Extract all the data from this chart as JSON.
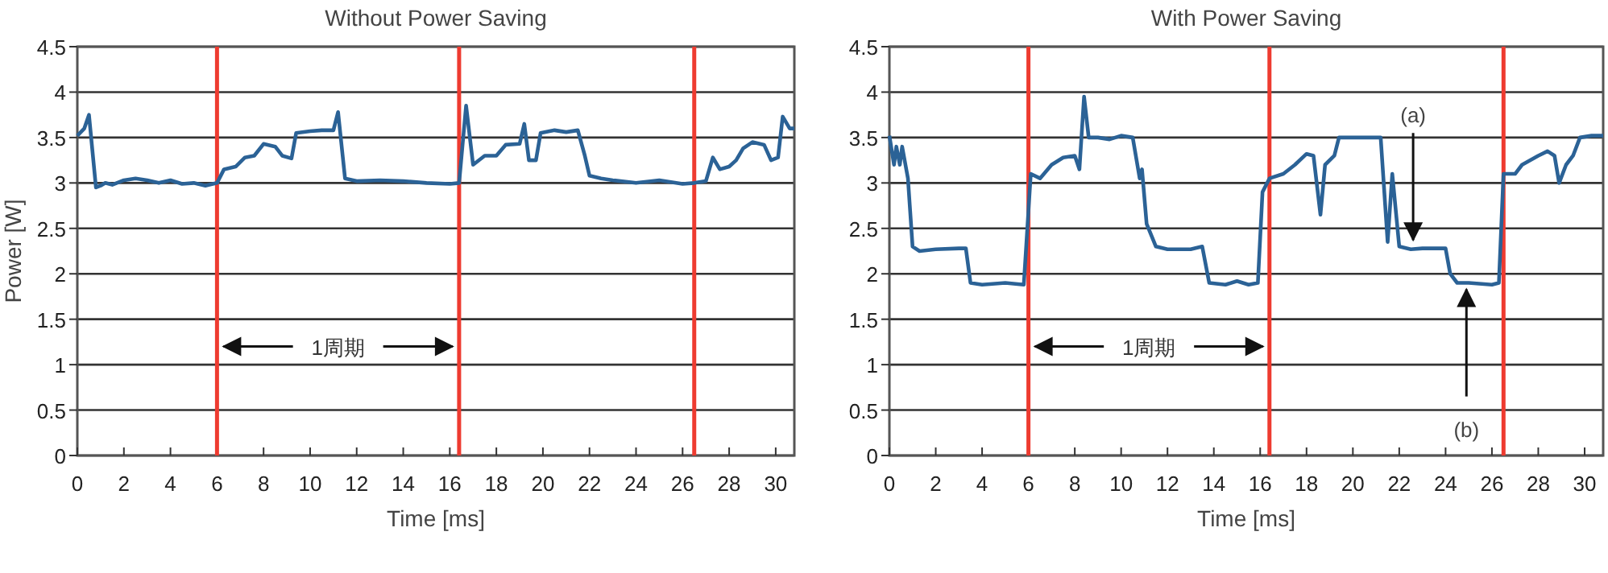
{
  "chart_data": [
    {
      "type": "line",
      "title": "Without Power Saving",
      "xlabel": "Time [ms]",
      "ylabel": "Power [W]",
      "xlim": [
        0,
        30.8
      ],
      "xticks": [
        0,
        2,
        4,
        6,
        8,
        10,
        12,
        14,
        16,
        18,
        20,
        22,
        24,
        26,
        28,
        30
      ],
      "ylim": [
        0,
        4.5
      ],
      "yticks": [
        0,
        0.5,
        1,
        1.5,
        2,
        2.5,
        3,
        3.5,
        4,
        4.5
      ],
      "grid": "y",
      "line_style": "solid",
      "ref_lines": [
        {
          "axis": "x",
          "value": 6,
          "color": "#ee3b30"
        },
        {
          "axis": "x",
          "value": 16.4,
          "color": "#ee3b30"
        },
        {
          "axis": "x",
          "value": 26.5,
          "color": "#ee3b30"
        }
      ],
      "annotations": [
        {
          "text": "1周期",
          "x": 6,
          "y": 1.2
        }
      ],
      "series": [
        {
          "color": "#2b6296",
          "x": [
            0,
            0.3,
            0.5,
            0.8,
            1.0,
            1.2,
            1.5,
            2,
            2.5,
            3,
            3.5,
            4,
            4.5,
            5,
            5.5,
            6,
            6.3,
            6.8,
            7.2,
            7.6,
            8,
            8.5,
            8.8,
            9.2,
            9.4,
            10,
            10.5,
            11,
            11.2,
            11.5,
            12,
            13,
            14,
            15,
            16,
            16.4,
            16.7,
            17,
            17.5,
            18,
            18.4,
            19,
            19.2,
            19.4,
            19.7,
            19.9,
            20.5,
            21,
            21.5,
            21.8,
            22,
            22.5,
            23,
            24,
            25,
            26,
            26.5,
            27,
            27.3,
            27.6,
            28,
            28.3,
            28.6,
            29,
            29.5,
            29.8,
            30.1,
            30.3,
            30.6,
            30.8
          ],
          "values": [
            3.52,
            3.6,
            3.75,
            2.95,
            2.97,
            3.0,
            2.98,
            3.03,
            3.05,
            3.03,
            3.0,
            3.03,
            2.99,
            3.0,
            2.97,
            3.0,
            3.15,
            3.18,
            3.28,
            3.3,
            3.43,
            3.4,
            3.3,
            3.27,
            3.55,
            3.57,
            3.58,
            3.58,
            3.78,
            3.05,
            3.02,
            3.03,
            3.02,
            3.0,
            2.99,
            3.0,
            3.85,
            3.2,
            3.3,
            3.3,
            3.42,
            3.43,
            3.65,
            3.25,
            3.25,
            3.55,
            3.58,
            3.56,
            3.58,
            3.3,
            3.08,
            3.05,
            3.03,
            3.0,
            3.03,
            2.99,
            3.0,
            3.02,
            3.28,
            3.15,
            3.18,
            3.25,
            3.38,
            3.45,
            3.42,
            3.25,
            3.28,
            3.73,
            3.6,
            3.6
          ]
        }
      ]
    },
    {
      "type": "line",
      "title": "With Power Saving",
      "xlabel": "Time [ms]",
      "xlim": [
        0,
        30.8
      ],
      "xticks": [
        0,
        2,
        4,
        6,
        8,
        10,
        12,
        14,
        16,
        18,
        20,
        22,
        24,
        26,
        28,
        30
      ],
      "ylim": [
        0,
        4.5
      ],
      "yticks": [
        0,
        0.5,
        1,
        1.5,
        2,
        2.5,
        3,
        3.5,
        4,
        4.5
      ],
      "grid": "y",
      "line_style": "solid",
      "ref_lines": [
        {
          "axis": "x",
          "value": 6,
          "color": "#ee3b30"
        },
        {
          "axis": "x",
          "value": 16.4,
          "color": "#ee3b30"
        },
        {
          "axis": "x",
          "value": 26.5,
          "color": "#ee3b30"
        }
      ],
      "annotations": [
        {
          "text": "1周期",
          "x": 6,
          "y": 1.2
        },
        {
          "text": "(a)",
          "x": 22.6,
          "y": 2.3
        },
        {
          "text": "(b)",
          "x": 24.9,
          "y": 1.9
        }
      ],
      "series": [
        {
          "color": "#2b6296",
          "x": [
            0,
            0.2,
            0.3,
            0.45,
            0.55,
            0.8,
            1.0,
            1.3,
            2,
            3,
            3.3,
            3.5,
            4,
            5,
            5.8,
            6.1,
            6.5,
            7,
            7.5,
            8,
            8.2,
            8.4,
            8.6,
            9,
            9.5,
            10,
            10.5,
            10.8,
            10.9,
            11.1,
            11.5,
            12,
            13,
            13.5,
            13.8,
            14.5,
            15,
            15.5,
            15.9,
            16.1,
            16.4,
            17,
            17.5,
            18,
            18.3,
            18.6,
            18.8,
            19.2,
            19.4,
            20,
            20.5,
            21.2,
            21.5,
            21.7,
            22,
            22.5,
            23,
            24,
            24.2,
            24.5,
            25,
            26,
            26.3,
            26.5,
            27,
            27.3,
            28,
            28.4,
            28.7,
            28.9,
            29.2,
            29.5,
            29.8,
            30.3,
            30.8
          ],
          "values": [
            3.52,
            3.2,
            3.4,
            3.2,
            3.4,
            3.05,
            2.3,
            2.25,
            2.27,
            2.28,
            2.28,
            1.9,
            1.88,
            1.9,
            1.88,
            3.1,
            3.05,
            3.2,
            3.28,
            3.3,
            3.15,
            3.95,
            3.5,
            3.5,
            3.48,
            3.52,
            3.5,
            3.05,
            3.15,
            2.55,
            2.3,
            2.27,
            2.27,
            2.3,
            1.9,
            1.88,
            1.92,
            1.88,
            1.9,
            2.9,
            3.05,
            3.1,
            3.2,
            3.32,
            3.3,
            2.65,
            3.2,
            3.3,
            3.5,
            3.5,
            3.5,
            3.5,
            2.35,
            3.1,
            2.3,
            2.27,
            2.28,
            2.28,
            2.0,
            1.9,
            1.9,
            1.88,
            1.9,
            3.1,
            3.1,
            3.2,
            3.3,
            3.35,
            3.3,
            3.0,
            3.2,
            3.3,
            3.5,
            3.52,
            3.52
          ]
        }
      ]
    }
  ]
}
